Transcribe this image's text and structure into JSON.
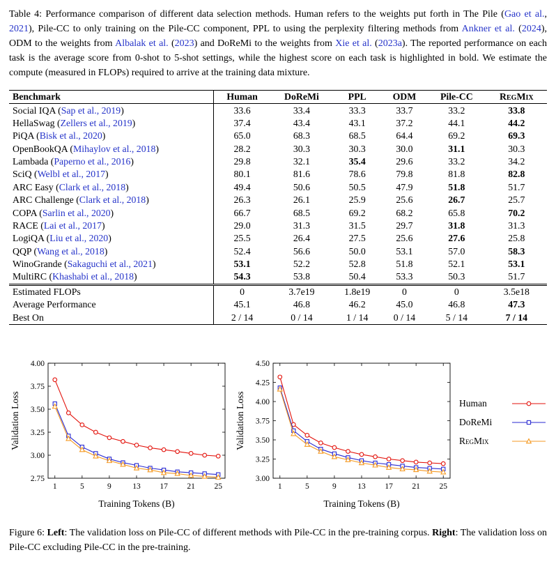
{
  "page": {
    "background": "#ffffff",
    "link_color": "#2533c9"
  },
  "table_caption": {
    "segments": [
      {
        "t": "Table 4: Performance comparison of different data selection methods. Human refers to the weights put forth in The Pile ("
      },
      {
        "t": "Gao et al.",
        "link": true
      },
      {
        "t": ", "
      },
      {
        "t": "2021",
        "link": true
      },
      {
        "t": "), Pile-CC to only training on the Pile-CC component, PPL to using the perplexity filtering methods from "
      },
      {
        "t": "Ankner et al.",
        "link": true
      },
      {
        "t": " ("
      },
      {
        "t": "2024",
        "link": true
      },
      {
        "t": "), ODM to the weights from "
      },
      {
        "t": "Albalak et al.",
        "link": true
      },
      {
        "t": " ("
      },
      {
        "t": "2023",
        "link": true
      },
      {
        "t": ") and DoReMi to the weights from "
      },
      {
        "t": "Xie et al.",
        "link": true
      },
      {
        "t": " ("
      },
      {
        "t": "2023a",
        "link": true
      },
      {
        "t": "). The reported performance on each task is the average score from 0-shot to 5-shot settings, while the highest score on each task is highlighted in bold. We estimate the compute (measured in FLOPs) required to arrive at the training data mixture."
      }
    ]
  },
  "table": {
    "headers": [
      {
        "label": "Benchmark"
      },
      {
        "label": "Human"
      },
      {
        "label": "DoReMi"
      },
      {
        "label": "PPL"
      },
      {
        "label": "ODM"
      },
      {
        "label": "Pile-CC"
      },
      {
        "label": "RegMix",
        "smallcaps": true
      }
    ],
    "rows": [
      {
        "benchmark": "Social IQA",
        "cite": "Sap et al., 2019",
        "values": [
          "33.6",
          "33.4",
          "33.3",
          "33.7",
          "33.2",
          "33.8"
        ],
        "bold": [
          5
        ]
      },
      {
        "benchmark": "HellaSwag",
        "cite": "Zellers et al., 2019",
        "values": [
          "37.4",
          "43.4",
          "43.1",
          "37.2",
          "44.1",
          "44.2"
        ],
        "bold": [
          5
        ]
      },
      {
        "benchmark": "PiQA",
        "cite": "Bisk et al., 2020",
        "values": [
          "65.0",
          "68.3",
          "68.5",
          "64.4",
          "69.2",
          "69.3"
        ],
        "bold": [
          5
        ]
      },
      {
        "benchmark": "OpenBookQA",
        "cite": "Mihaylov et al., 2018",
        "values": [
          "28.2",
          "30.3",
          "30.3",
          "30.0",
          "31.1",
          "30.3"
        ],
        "bold": [
          4
        ]
      },
      {
        "benchmark": "Lambada",
        "cite": "Paperno et al., 2016",
        "values": [
          "29.8",
          "32.1",
          "35.4",
          "29.6",
          "33.2",
          "34.2"
        ],
        "bold": [
          2
        ]
      },
      {
        "benchmark": "SciQ",
        "cite": "Welbl et al., 2017",
        "values": [
          "80.1",
          "81.6",
          "78.6",
          "79.8",
          "81.8",
          "82.8"
        ],
        "bold": [
          5
        ]
      },
      {
        "benchmark": "ARC Easy",
        "cite": "Clark et al., 2018",
        "values": [
          "49.4",
          "50.6",
          "50.5",
          "47.9",
          "51.8",
          "51.7"
        ],
        "bold": [
          4
        ]
      },
      {
        "benchmark": "ARC Challenge",
        "cite": "Clark et al., 2018",
        "values": [
          "26.3",
          "26.1",
          "25.9",
          "25.6",
          "26.7",
          "25.7"
        ],
        "bold": [
          4
        ]
      },
      {
        "benchmark": "COPA",
        "cite": "Sarlin et al., 2020",
        "values": [
          "66.7",
          "68.5",
          "69.2",
          "68.2",
          "65.8",
          "70.2"
        ],
        "bold": [
          5
        ]
      },
      {
        "benchmark": "RACE",
        "cite": "Lai et al., 2017",
        "values": [
          "29.0",
          "31.3",
          "31.5",
          "29.7",
          "31.8",
          "31.3"
        ],
        "bold": [
          4
        ]
      },
      {
        "benchmark": "LogiQA",
        "cite": "Liu et al., 2020",
        "values": [
          "25.5",
          "26.4",
          "27.5",
          "25.6",
          "27.6",
          "25.8"
        ],
        "bold": [
          4
        ]
      },
      {
        "benchmark": "QQP",
        "cite": "Wang et al., 2018",
        "values": [
          "52.4",
          "56.6",
          "50.0",
          "53.1",
          "57.0",
          "58.3"
        ],
        "bold": [
          5
        ]
      },
      {
        "benchmark": "WinoGrande",
        "cite": "Sakaguchi et al., 2021",
        "values": [
          "53.1",
          "52.2",
          "52.8",
          "51.8",
          "52.1",
          "53.1"
        ],
        "bold": [
          0,
          5
        ]
      },
      {
        "benchmark": "MultiRC",
        "cite": "Khashabi et al., 2018",
        "values": [
          "54.3",
          "53.8",
          "50.4",
          "53.3",
          "50.3",
          "51.7"
        ],
        "bold": [
          0
        ]
      }
    ],
    "summary_rows": [
      {
        "label": "Estimated FLOPs",
        "values": [
          "0",
          "3.7e19",
          "1.8e19",
          "0",
          "0",
          "3.5e18"
        ],
        "bold": []
      },
      {
        "label": "Average Performance",
        "values": [
          "45.1",
          "46.8",
          "46.2",
          "45.0",
          "46.8",
          "47.3"
        ],
        "bold": [
          5
        ]
      },
      {
        "label": "Best On",
        "values": [
          "2 / 14",
          "0 / 14",
          "1 / 14",
          "0 / 14",
          "5 / 14",
          "7 / 14"
        ],
        "bold": [
          5
        ]
      }
    ]
  },
  "chart_data": [
    {
      "type": "line",
      "title": "",
      "xlabel": "Training Tokens (B)",
      "ylabel": "Validation Loss",
      "x": [
        1,
        3,
        5,
        7,
        9,
        11,
        13,
        15,
        17,
        19,
        21,
        23,
        25
      ],
      "xticks": [
        1,
        5,
        9,
        13,
        17,
        21,
        25
      ],
      "xlim": [
        0,
        26
      ],
      "ylim": [
        2.75,
        4.0
      ],
      "yticks": [
        2.75,
        3.0,
        3.25,
        3.5,
        3.75,
        4.0
      ],
      "grid": false,
      "series": [
        {
          "name": "Human",
          "color": "#e3120b",
          "marker": "circle",
          "values": [
            3.82,
            3.46,
            3.33,
            3.25,
            3.19,
            3.15,
            3.11,
            3.08,
            3.06,
            3.04,
            3.02,
            3.0,
            2.99
          ]
        },
        {
          "name": "DoReMi",
          "color": "#2a2ad1",
          "marker": "square",
          "values": [
            3.56,
            3.21,
            3.09,
            3.02,
            2.96,
            2.92,
            2.89,
            2.86,
            2.84,
            2.82,
            2.81,
            2.8,
            2.79
          ]
        },
        {
          "name": "RegMix",
          "color": "#f59a23",
          "marker": "triangle",
          "values": [
            3.53,
            3.18,
            3.06,
            2.99,
            2.94,
            2.9,
            2.86,
            2.84,
            2.81,
            2.8,
            2.78,
            2.77,
            2.76
          ]
        }
      ]
    },
    {
      "type": "line",
      "title": "",
      "xlabel": "Training Tokens (B)",
      "ylabel": "Validation Loss",
      "x": [
        1,
        3,
        5,
        7,
        9,
        11,
        13,
        15,
        17,
        19,
        21,
        23,
        25
      ],
      "xticks": [
        1,
        5,
        9,
        13,
        17,
        21,
        25
      ],
      "xlim": [
        0,
        26
      ],
      "ylim": [
        3.0,
        4.5
      ],
      "yticks": [
        3.0,
        3.25,
        3.5,
        3.75,
        4.0,
        4.25,
        4.5
      ],
      "grid": false,
      "series": [
        {
          "name": "Human",
          "color": "#e3120b",
          "marker": "circle",
          "values": [
            4.32,
            3.7,
            3.56,
            3.46,
            3.4,
            3.35,
            3.31,
            3.28,
            3.25,
            3.23,
            3.21,
            3.2,
            3.19
          ]
        },
        {
          "name": "DoReMi",
          "color": "#2a2ad1",
          "marker": "square",
          "values": [
            4.18,
            3.62,
            3.48,
            3.38,
            3.32,
            3.27,
            3.23,
            3.2,
            3.18,
            3.16,
            3.14,
            3.13,
            3.12
          ]
        },
        {
          "name": "RegMix",
          "color": "#f59a23",
          "marker": "triangle",
          "values": [
            4.16,
            3.58,
            3.44,
            3.35,
            3.28,
            3.24,
            3.2,
            3.17,
            3.14,
            3.12,
            3.11,
            3.09,
            3.08
          ]
        }
      ]
    }
  ],
  "legend": [
    {
      "label": "Human",
      "color": "#e3120b",
      "marker": "circle"
    },
    {
      "label": "DoReMi",
      "color": "#2a2ad1",
      "marker": "square"
    },
    {
      "label": "RegMix",
      "color": "#f59a23",
      "marker": "triangle",
      "smallcaps": true
    }
  ],
  "figure_caption": {
    "segments": [
      {
        "t": "Figure 6: "
      },
      {
        "t": "Left",
        "bold": true
      },
      {
        "t": ": The validation loss on Pile-CC of different methods with Pile-CC in the pre-training corpus. "
      },
      {
        "t": "Right",
        "bold": true
      },
      {
        "t": ": The validation loss on Pile-CC excluding Pile-CC in the pre-training."
      }
    ]
  }
}
